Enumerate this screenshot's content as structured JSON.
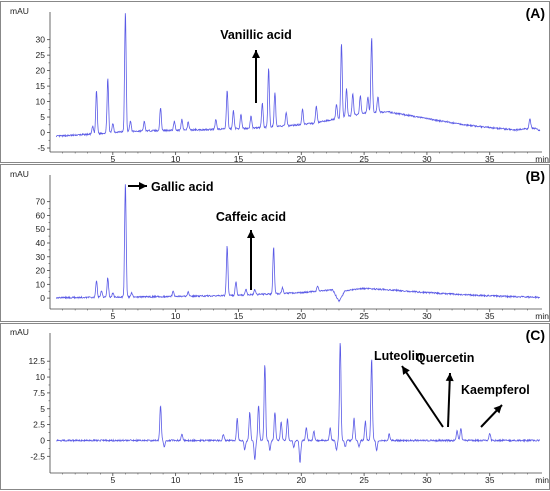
{
  "chart_data": [
    {
      "type": "line",
      "panel_label": "(A)",
      "ylabel": "mAU",
      "xlabel": "min",
      "xlim": [
        0,
        39
      ],
      "ylim": [
        -5,
        37
      ],
      "yticks": [
        -5,
        0,
        5,
        10,
        15,
        20,
        25,
        30
      ],
      "xticks": [
        5,
        10,
        15,
        20,
        25,
        30,
        35
      ],
      "baseline": [
        [
          0.5,
          -1.2
        ],
        [
          3.0,
          -0.6
        ],
        [
          5.5,
          0.2
        ],
        [
          8.0,
          0.6
        ],
        [
          12.0,
          0.9
        ],
        [
          16.0,
          1.4
        ],
        [
          19.0,
          2.2
        ],
        [
          21.0,
          3.0
        ],
        [
          22.5,
          4.2
        ],
        [
          24.0,
          5.5
        ],
        [
          25.5,
          6.6
        ],
        [
          27.0,
          6.6
        ],
        [
          29.0,
          5.2
        ],
        [
          31.0,
          3.8
        ],
        [
          33.0,
          2.5
        ],
        [
          35.0,
          1.6
        ],
        [
          37.0,
          0.8
        ],
        [
          38.5,
          1.5
        ],
        [
          39.0,
          0.5
        ]
      ],
      "peaks": [
        [
          3.4,
          2.5
        ],
        [
          3.7,
          14.0
        ],
        [
          4.6,
          17.5
        ],
        [
          5.0,
          3.0
        ],
        [
          6.0,
          39.0
        ],
        [
          6.4,
          3.5
        ],
        [
          7.5,
          3.0
        ],
        [
          8.8,
          7.5
        ],
        [
          9.9,
          3.0
        ],
        [
          10.5,
          3.5
        ],
        [
          11.0,
          2.5
        ],
        [
          13.2,
          3.0
        ],
        [
          14.1,
          12.5
        ],
        [
          14.6,
          6.0
        ],
        [
          15.2,
          4.5
        ],
        [
          16.0,
          4.0
        ],
        [
          16.9,
          8.0
        ],
        [
          17.4,
          19.0
        ],
        [
          17.9,
          11.0
        ],
        [
          18.8,
          4.5
        ],
        [
          20.1,
          5.0
        ],
        [
          21.2,
          5.5
        ],
        [
          22.8,
          4.5
        ],
        [
          23.2,
          24.0
        ],
        [
          23.6,
          9.0
        ],
        [
          24.1,
          7.0
        ],
        [
          24.7,
          6.0
        ],
        [
          25.3,
          5.0
        ],
        [
          25.6,
          24.0
        ],
        [
          26.1,
          5.0
        ],
        [
          38.2,
          3.0
        ]
      ],
      "annotations": [
        {
          "text": "Vanillic acid",
          "at": 16.8,
          "arrow": "up"
        }
      ]
    },
    {
      "type": "line",
      "panel_label": "(B)",
      "ylabel": "mAU",
      "xlabel": "min",
      "xlim": [
        0,
        39
      ],
      "ylim": [
        -5,
        85
      ],
      "yticks": [
        0,
        10,
        20,
        30,
        40,
        50,
        60,
        70
      ],
      "xticks": [
        5,
        10,
        15,
        20,
        25,
        30,
        35
      ],
      "baseline": [
        [
          0.5,
          0.3
        ],
        [
          5.0,
          0.7
        ],
        [
          10.0,
          1.2
        ],
        [
          15.0,
          2.0
        ],
        [
          20.0,
          4.0
        ],
        [
          22.5,
          6.0
        ],
        [
          23.0,
          -2.5
        ],
        [
          23.5,
          5.5
        ],
        [
          25.0,
          7.0
        ],
        [
          27.0,
          6.0
        ],
        [
          30.0,
          4.0
        ],
        [
          33.0,
          2.5
        ],
        [
          36.0,
          1.3
        ],
        [
          39.0,
          0.6
        ]
      ],
      "peaks": [
        [
          3.7,
          12.0
        ],
        [
          4.1,
          5.0
        ],
        [
          4.6,
          14.0
        ],
        [
          5.0,
          3.0
        ],
        [
          6.0,
          83.0
        ],
        [
          6.5,
          3.0
        ],
        [
          9.8,
          3.5
        ],
        [
          11.0,
          3.0
        ],
        [
          14.1,
          36.0
        ],
        [
          14.8,
          10.0
        ],
        [
          15.6,
          4.0
        ],
        [
          16.3,
          4.0
        ],
        [
          17.8,
          34.0
        ],
        [
          18.5,
          4.0
        ],
        [
          21.3,
          4.0
        ]
      ],
      "annotations": [
        {
          "text": "Gallic acid",
          "at": 6.0,
          "arrow": "right"
        },
        {
          "text": "Caffeic acid",
          "at": 16.4,
          "arrow": "up"
        }
      ]
    },
    {
      "type": "line",
      "panel_label": "(C)",
      "ylabel": "mAU",
      "xlabel": "min",
      "xlim": [
        0,
        39
      ],
      "ylim": [
        -4.5,
        16
      ],
      "yticks": [
        -2.5,
        0,
        2.5,
        5,
        7.5,
        10,
        12.5
      ],
      "xticks": [
        5,
        10,
        15,
        20,
        25,
        30,
        35
      ],
      "baseline": [
        [
          0.5,
          0.0
        ],
        [
          39.0,
          0.0
        ]
      ],
      "peaks": [
        [
          8.8,
          5.5
        ],
        [
          9.1,
          -1.0
        ],
        [
          10.5,
          1.0
        ],
        [
          13.8,
          1.0
        ],
        [
          14.9,
          3.5
        ],
        [
          15.5,
          -1.5
        ],
        [
          15.9,
          4.5
        ],
        [
          16.3,
          -3.0
        ],
        [
          16.6,
          5.5
        ],
        [
          17.1,
          12.0
        ],
        [
          17.5,
          -1.5
        ],
        [
          17.9,
          4.5
        ],
        [
          18.4,
          3.0
        ],
        [
          18.9,
          3.5
        ],
        [
          19.4,
          -1.0
        ],
        [
          19.9,
          -3.5
        ],
        [
          20.4,
          2.0
        ],
        [
          21.0,
          1.5
        ],
        [
          22.3,
          2.0
        ],
        [
          22.8,
          -1.5
        ],
        [
          23.1,
          15.5
        ],
        [
          23.5,
          -1.0
        ],
        [
          24.2,
          3.5
        ],
        [
          24.6,
          -1.0
        ],
        [
          25.1,
          3.0
        ],
        [
          25.6,
          13.0
        ],
        [
          26.0,
          -1.5
        ],
        [
          27.0,
          1.0
        ],
        [
          32.4,
          1.5
        ],
        [
          32.7,
          2.0
        ],
        [
          35.0,
          1.2
        ]
      ],
      "annotations": [
        {
          "text": "Luteolin",
          "at": 32.3,
          "arrow": "up-left"
        },
        {
          "text": "Quercetin",
          "at": 32.7,
          "arrow": "up"
        },
        {
          "text": "Kaempferol",
          "at": 35.1,
          "arrow": "up-right"
        }
      ]
    }
  ]
}
